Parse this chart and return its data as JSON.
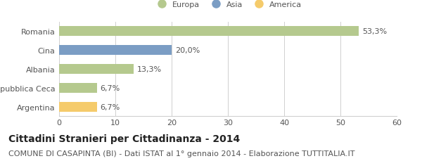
{
  "categories": [
    "Romania",
    "Cina",
    "Albania",
    "Repubblica Ceca",
    "Argentina"
  ],
  "values": [
    53.3,
    20.0,
    13.3,
    6.7,
    6.7
  ],
  "labels": [
    "53,3%",
    "20,0%",
    "13,3%",
    "6,7%",
    "6,7%"
  ],
  "bar_colors": [
    "#b5c98e",
    "#7b9dc4",
    "#b5c98e",
    "#b5c98e",
    "#f5cb6b"
  ],
  "legend_items": [
    {
      "label": "Europa",
      "color": "#b5c98e"
    },
    {
      "label": "Asia",
      "color": "#7b9dc4"
    },
    {
      "label": "America",
      "color": "#f5cb6b"
    }
  ],
  "xlim": [
    0,
    60
  ],
  "xticks": [
    0,
    10,
    20,
    30,
    40,
    50,
    60
  ],
  "title": "Cittadini Stranieri per Cittadinanza - 2014",
  "subtitle": "COMUNE DI CASAPINTA (BI) - Dati ISTAT al 1° gennaio 2014 - Elaborazione TUTTITALIA.IT",
  "background_color": "#ffffff",
  "grid_color": "#d0d0d0",
  "title_fontsize": 10,
  "subtitle_fontsize": 8,
  "label_fontsize": 8,
  "tick_fontsize": 8,
  "bar_height": 0.52
}
